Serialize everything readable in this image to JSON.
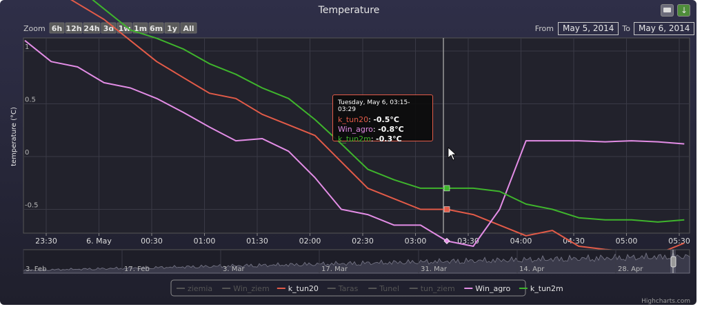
{
  "title": "Temperature",
  "range_selector": {
    "zoom_label": "Zoom",
    "buttons": [
      "6h",
      "12h",
      "24h",
      "3d",
      "1w",
      "1m",
      "6m",
      "1y",
      "All"
    ],
    "from_label": "From",
    "from_value": "May 5, 2014",
    "to_label": "To",
    "to_value": "May 6, 2014"
  },
  "tooltip": {
    "header": "Tuesday, May 6, 03:15-03:29",
    "rows": [
      {
        "name": "k_tun20",
        "value": "-0.5°C"
      },
      {
        "name": "Win_agro",
        "value": "-0.8°C"
      },
      {
        "name": "k_tun2m",
        "value": "-0.3°C"
      }
    ]
  },
  "navigator": {
    "labels": [
      "3. Feb",
      "17. Feb",
      "3. Mar",
      "17. Mar",
      "31. Mar",
      "14. Apr",
      "28. Apr"
    ]
  },
  "legend": [
    {
      "name": "ziemia",
      "color": "#555555",
      "visible": false
    },
    {
      "name": "Win_ziem",
      "color": "#555555",
      "visible": false
    },
    {
      "name": "k_tun20",
      "color": "#e35b48",
      "visible": true
    },
    {
      "name": "Taras",
      "color": "#555555",
      "visible": false
    },
    {
      "name": "Tunel",
      "color": "#555555",
      "visible": false
    },
    {
      "name": "tun_ziem",
      "color": "#555555",
      "visible": false
    },
    {
      "name": "Win_agro",
      "color": "#e38de6",
      "visible": true
    },
    {
      "name": "k_tun2m",
      "color": "#3fb52c",
      "visible": true
    }
  ],
  "credits": "Highcharts.com",
  "chart_data": {
    "type": "line",
    "title": "Temperature",
    "ylabel": "temperature (°C)",
    "ylim": [
      -1.5,
      2.3
    ],
    "yticks": [
      "2",
      "1.5",
      "1",
      "0.5",
      "0",
      "-0.5",
      "-1",
      "-1.5"
    ],
    "grid": true,
    "legend_position": "bottom",
    "x_tick_labels": [
      "23:30",
      "6. May",
      "00:30",
      "01:00",
      "01:30",
      "02:00",
      "02:30",
      "03:00",
      "03:30",
      "04:00",
      "04:30",
      "05:00",
      "05:30"
    ],
    "x": [
      "23:15",
      "23:30",
      "23:45",
      "00:00",
      "00:15",
      "00:30",
      "00:45",
      "01:00",
      "01:15",
      "01:30",
      "01:45",
      "02:00",
      "02:15",
      "02:30",
      "02:45",
      "03:00",
      "03:15",
      "03:30",
      "03:45",
      "04:00",
      "04:15",
      "04:30",
      "04:45",
      "05:00",
      "05:15",
      "05:30"
    ],
    "series": [
      {
        "name": "k_tun20",
        "color": "#e35b48",
        "values": [
          1.8,
          1.6,
          1.45,
          1.3,
          1.1,
          0.9,
          0.75,
          0.6,
          0.55,
          0.4,
          0.3,
          0.2,
          -0.05,
          -0.3,
          -0.4,
          -0.5,
          -0.5,
          -0.55,
          -0.65,
          -0.75,
          -0.7,
          -0.85,
          -0.88,
          -0.9,
          -0.92,
          -0.82
        ]
      },
      {
        "name": "Win_agro",
        "color": "#e38de6",
        "values": [
          1.1,
          0.9,
          0.85,
          0.7,
          0.65,
          0.55,
          0.42,
          0.28,
          0.15,
          0.17,
          0.05,
          -0.2,
          -0.5,
          -0.55,
          -0.65,
          -0.65,
          -0.8,
          -0.85,
          -0.5,
          0.15,
          0.15,
          0.15,
          0.14,
          0.15,
          0.14,
          0.12
        ]
      },
      {
        "name": "k_tun2m",
        "color": "#3fb52c",
        "values": [
          2.05,
          1.85,
          1.6,
          1.4,
          1.2,
          1.12,
          1.02,
          0.88,
          0.78,
          0.65,
          0.55,
          0.35,
          0.12,
          -0.12,
          -0.22,
          -0.3,
          -0.3,
          -0.3,
          -0.33,
          -0.45,
          -0.5,
          -0.58,
          -0.6,
          -0.6,
          -0.62,
          -0.6
        ]
      }
    ],
    "crosshair_x": "03:15"
  }
}
